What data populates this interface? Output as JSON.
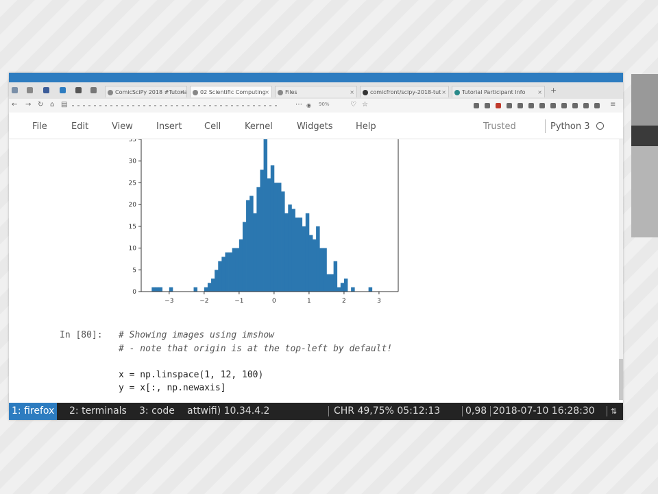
{
  "browser": {
    "tabs": [
      {
        "label": "ComicSciPy 2018 #Tutorials",
        "active": false
      },
      {
        "label": "02 Scientific Computing",
        "active": true
      },
      {
        "label": "Files",
        "active": false
      },
      {
        "label": "comicfront/scipy-2018-tut",
        "active": false
      },
      {
        "label": "Tutorial Participant Info",
        "active": false
      }
    ],
    "new_tab_label": "+",
    "zoom_level": "90%"
  },
  "menubar": {
    "items": [
      "File",
      "Edit",
      "View",
      "Insert",
      "Cell",
      "Kernel",
      "Widgets",
      "Help"
    ],
    "trusted_label": "Trusted",
    "kernel_label": "Python 3"
  },
  "cell": {
    "prompt": "In [80]:",
    "lines": [
      {
        "text": "# Showing images using imshow",
        "kind": "comment"
      },
      {
        "text": "# - note that origin is at the top-left by default!",
        "kind": "comment"
      },
      {
        "text": "",
        "kind": "blank"
      },
      {
        "text": "x = np.linspace(1, 12, 100)",
        "kind": "code"
      },
      {
        "text": "y = x[:, np.newaxis]",
        "kind": "code"
      }
    ]
  },
  "chart_data": {
    "type": "bar",
    "title": "",
    "xlabel": "",
    "ylabel": "",
    "xlim": [
      -3.8,
      3.55
    ],
    "ylim": [
      0,
      35
    ],
    "bar_color": "#2b77b0",
    "xticks": [
      "−3",
      "−2",
      "−1",
      "0",
      "1",
      "2",
      "3"
    ],
    "xtick_values": [
      -3,
      -2,
      -1,
      0,
      1,
      2,
      3
    ],
    "yticks": [
      "0",
      "5",
      "10",
      "15",
      "20",
      "25",
      "30",
      "35"
    ],
    "ytick_values": [
      0,
      5,
      10,
      15,
      20,
      25,
      30,
      35
    ],
    "bin_start": -3.5,
    "bin_width": 0.1,
    "values": [
      1,
      1,
      1,
      0,
      0,
      1,
      0,
      0,
      0,
      0,
      0,
      0,
      1,
      0,
      0,
      1,
      2,
      3,
      5,
      7,
      8,
      9,
      9,
      10,
      10,
      12,
      16,
      21,
      22,
      18,
      24,
      28,
      35,
      26,
      29,
      25,
      25,
      23,
      18,
      20,
      19,
      17,
      17,
      15,
      18,
      13,
      12,
      15,
      10,
      10,
      4,
      4,
      7,
      1,
      2,
      3,
      0,
      1,
      0,
      0,
      0,
      0,
      1
    ]
  },
  "statusbar": {
    "workspaces": [
      {
        "label": "1: firefox",
        "active": true
      },
      {
        "label": "2: terminals",
        "active": false
      },
      {
        "label": "3: code",
        "active": false
      }
    ],
    "network": "attwifi) 10.34.4.2",
    "battery": "CHR 49,75% 05:12:13",
    "load": "0,98",
    "datetime": "2018-07-10 16:28:30"
  },
  "colors": {
    "accent": "#2d7cc0",
    "statusbar_bg": "#232323"
  }
}
